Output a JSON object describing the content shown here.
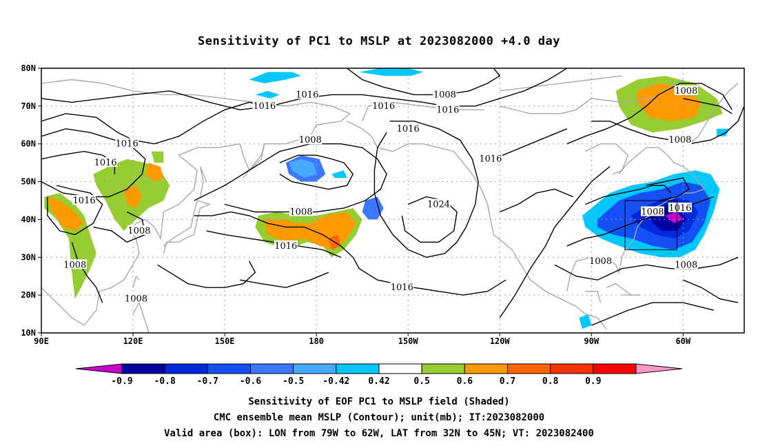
{
  "chart_data": {
    "type": "heatmap",
    "title": "Sensitivity of PC1 to MSLP at 2023082000 +4.0 day",
    "x_ticks": [
      "90E",
      "120E",
      "150E",
      "180",
      "150W",
      "120W",
      "90W",
      "60W"
    ],
    "y_ticks": [
      "10N",
      "20N",
      "30N",
      "40N",
      "50N",
      "60N",
      "70N",
      "80N"
    ],
    "xlim_deg_east": [
      90,
      320
    ],
    "ylim_deg_north": [
      10,
      80
    ],
    "grid": true,
    "colorbar": {
      "labels": [
        "-0.9",
        "-0.8",
        "-0.7",
        "-0.6",
        "-0.5",
        "-0.42",
        "0.42",
        "0.5",
        "0.6",
        "0.7",
        "0.8",
        "0.9"
      ],
      "colors": [
        "#c800c8",
        "#0000a0",
        "#0028dc",
        "#1450f5",
        "#3c78ff",
        "#46aaff",
        "#00c8ff",
        "#ffffff",
        "#96cd32",
        "#ff9900",
        "#ff6600",
        "#ff3300",
        "#ff0000",
        "#ff96c8"
      ]
    },
    "contour_labels": [
      {
        "text": "1016",
        "lon": 163,
        "lat": 70
      },
      {
        "text": "1016",
        "lon": 177,
        "lat": 73
      },
      {
        "text": "1008",
        "lon": 222,
        "lat": 73
      },
      {
        "text": "1016",
        "lon": 202,
        "lat": 70
      },
      {
        "text": "1016",
        "lon": 223,
        "lat": 69
      },
      {
        "text": "1008",
        "lon": 301,
        "lat": 74
      },
      {
        "text": "1008",
        "lon": 299,
        "lat": 61
      },
      {
        "text": "1016",
        "lon": 210,
        "lat": 64
      },
      {
        "text": "1008",
        "lon": 178,
        "lat": 61
      },
      {
        "text": "1016",
        "lon": 118,
        "lat": 60
      },
      {
        "text": "1016",
        "lon": 111,
        "lat": 55
      },
      {
        "text": "1016",
        "lon": 237,
        "lat": 56
      },
      {
        "text": "1024",
        "lon": 220,
        "lat": 44
      },
      {
        "text": "1008",
        "lon": 175,
        "lat": 42
      },
      {
        "text": "1008",
        "lon": 290,
        "lat": 42
      },
      {
        "text": "1016",
        "lon": 299,
        "lat": 43
      },
      {
        "text": "1016",
        "lon": 104,
        "lat": 45
      },
      {
        "text": "1008",
        "lon": 122,
        "lat": 37
      },
      {
        "text": "1016",
        "lon": 170,
        "lat": 33
      },
      {
        "text": "1008",
        "lon": 273,
        "lat": 29
      },
      {
        "text": "1008",
        "lon": 101,
        "lat": 28
      },
      {
        "text": "1008",
        "lon": 301,
        "lat": 28
      },
      {
        "text": "1016",
        "lon": 208,
        "lat": 22
      },
      {
        "text": "1008",
        "lon": 121,
        "lat": 19
      }
    ],
    "valid_box": {
      "lon_from": "79W",
      "lon_to": "62W",
      "lat_from": "32N",
      "lat_to": "45N"
    }
  },
  "captions": {
    "line1": "Sensitivity of EOF PC1 to MSLP field (Shaded)",
    "line2": "CMC ensemble mean MSLP (Contour); unit(mb); IT:2023082000",
    "line3": "Valid area (box): LON from 79W to 62W, LAT from 32N to 45N; VT: 2023082400"
  }
}
